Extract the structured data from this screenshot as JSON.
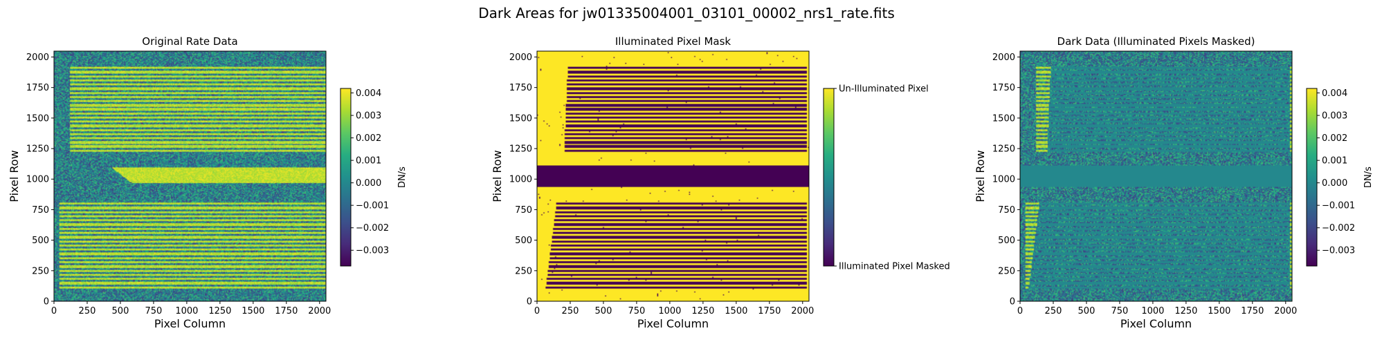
{
  "figure": {
    "suptitle": "Dark Areas for jw01335004001_03101_00002_nrs1_rate.fits"
  },
  "chart_data": [
    {
      "type": "heatmap",
      "title": "Original Rate Data",
      "xlabel": "Pixel Column",
      "ylabel": "Pixel Row",
      "xlim": [
        0,
        2048
      ],
      "ylim": [
        0,
        2048
      ],
      "xticks": [
        0,
        250,
        500,
        750,
        1000,
        1250,
        1500,
        1750,
        2000
      ],
      "yticks": [
        0,
        250,
        500,
        750,
        1000,
        1250,
        1500,
        1750,
        2000
      ],
      "colormap": "viridis",
      "colorbar": {
        "label": "DN/s",
        "range": [
          -0.0037,
          0.0042
        ],
        "ticks": [
          0.004,
          0.003,
          0.002,
          0.001,
          0.0,
          -0.001,
          -0.002,
          -0.003
        ],
        "tick_labels": [
          "0.004",
          "0.003",
          "0.002",
          "0.001",
          "0.000",
          "−0.001",
          "−0.002",
          "−0.003"
        ]
      }
    },
    {
      "type": "heatmap",
      "title": "Illuminated Pixel Mask",
      "xlabel": "Pixel Column",
      "ylabel": "Pixel Row",
      "xlim": [
        0,
        2048
      ],
      "ylim": [
        0,
        2048
      ],
      "xticks": [
        0,
        250,
        500,
        750,
        1000,
        1250,
        1500,
        1750,
        2000
      ],
      "yticks": [
        0,
        250,
        500,
        750,
        1000,
        1250,
        1500,
        1750,
        2000
      ],
      "colormap": "viridis",
      "colorbar": {
        "label": "",
        "ticks": [
          1,
          0
        ],
        "tick_labels": [
          "Un-Illuminated Pixel",
          "Illuminated Pixel Masked"
        ]
      }
    },
    {
      "type": "heatmap",
      "title": "Dark Data (Illuminated Pixels Masked)",
      "xlabel": "Pixel Column",
      "ylabel": "Pixel Row",
      "xlim": [
        0,
        2048
      ],
      "ylim": [
        0,
        2048
      ],
      "xticks": [
        0,
        250,
        500,
        750,
        1000,
        1250,
        1500,
        1750,
        2000
      ],
      "yticks": [
        0,
        250,
        500,
        750,
        1000,
        1250,
        1500,
        1750,
        2000
      ],
      "colormap": "viridis",
      "colorbar": {
        "label": "DN/s",
        "range": [
          -0.0037,
          0.0042
        ],
        "ticks": [
          0.004,
          0.003,
          0.002,
          0.001,
          0.0,
          -0.001,
          -0.002,
          -0.003
        ],
        "tick_labels": [
          "0.004",
          "0.003",
          "0.002",
          "0.001",
          "0.000",
          "−0.001",
          "−0.002",
          "−0.003"
        ]
      }
    }
  ],
  "detector": {
    "size": 2048,
    "bands": [
      {
        "name": "upper",
        "rows": [
          1220,
          1930
        ],
        "stripes": 21
      },
      {
        "name": "lower",
        "rows": [
          100,
          820
        ],
        "stripes": 21
      }
    ],
    "gap_rows": [
      930,
      1110
    ],
    "masked_level": 0.0
  }
}
